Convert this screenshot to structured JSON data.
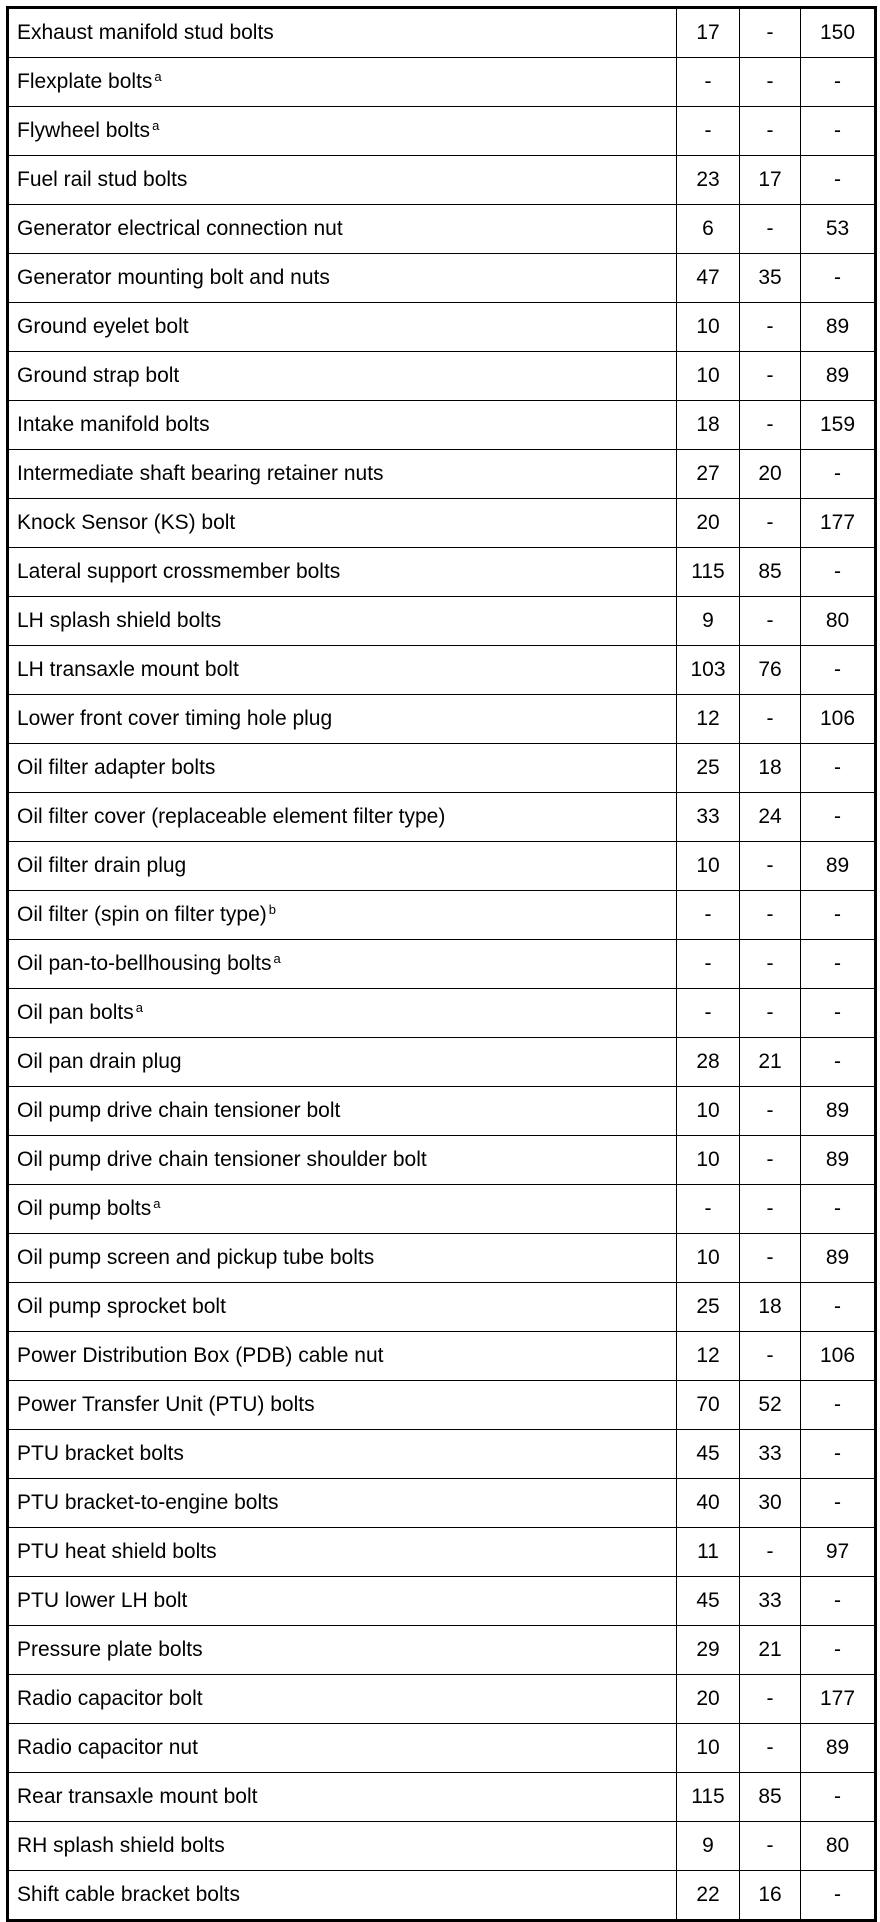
{
  "rows": [
    {
      "name": "Exhaust manifold stud bolts",
      "sup": "",
      "nm": "17",
      "lbft": "-",
      "lbin": "150"
    },
    {
      "name": "Flexplate bolts",
      "sup": "a",
      "nm": "-",
      "lbft": "-",
      "lbin": "-"
    },
    {
      "name": "Flywheel bolts",
      "sup": "a",
      "nm": "-",
      "lbft": "-",
      "lbin": "-"
    },
    {
      "name": "Fuel rail stud bolts",
      "sup": "",
      "nm": "23",
      "lbft": "17",
      "lbin": "-"
    },
    {
      "name": "Generator electrical connection nut",
      "sup": "",
      "nm": "6",
      "lbft": "-",
      "lbin": "53"
    },
    {
      "name": "Generator mounting bolt and nuts",
      "sup": "",
      "nm": "47",
      "lbft": "35",
      "lbin": "-"
    },
    {
      "name": "Ground eyelet bolt",
      "sup": "",
      "nm": "10",
      "lbft": "-",
      "lbin": "89"
    },
    {
      "name": "Ground strap bolt",
      "sup": "",
      "nm": "10",
      "lbft": "-",
      "lbin": "89"
    },
    {
      "name": "Intake manifold bolts",
      "sup": "",
      "nm": "18",
      "lbft": "-",
      "lbin": "159"
    },
    {
      "name": "Intermediate shaft bearing retainer nuts",
      "sup": "",
      "nm": "27",
      "lbft": "20",
      "lbin": "-"
    },
    {
      "name": "Knock Sensor (KS) bolt",
      "sup": "",
      "nm": "20",
      "lbft": "-",
      "lbin": "177"
    },
    {
      "name": "Lateral support crossmember bolts",
      "sup": "",
      "nm": "115",
      "lbft": "85",
      "lbin": "-"
    },
    {
      "name": "LH splash shield bolts",
      "sup": "",
      "nm": "9",
      "lbft": "-",
      "lbin": "80"
    },
    {
      "name": "LH transaxle mount bolt",
      "sup": "",
      "nm": "103",
      "lbft": "76",
      "lbin": "-"
    },
    {
      "name": "Lower front cover timing hole plug",
      "sup": "",
      "nm": "12",
      "lbft": "-",
      "lbin": "106"
    },
    {
      "name": "Oil filter adapter bolts",
      "sup": "",
      "nm": "25",
      "lbft": "18",
      "lbin": "-"
    },
    {
      "name": "Oil filter cover (replaceable element filter type)",
      "sup": "",
      "nm": "33",
      "lbft": "24",
      "lbin": "-"
    },
    {
      "name": "Oil filter drain plug",
      "sup": "",
      "nm": "10",
      "lbft": "-",
      "lbin": "89"
    },
    {
      "name": "Oil filter (spin on filter type)",
      "sup": "b",
      "nm": "-",
      "lbft": "-",
      "lbin": "-"
    },
    {
      "name": "Oil pan-to-bellhousing bolts",
      "sup": "a",
      "nm": "-",
      "lbft": "-",
      "lbin": "-"
    },
    {
      "name": "Oil pan bolts",
      "sup": "a",
      "nm": "-",
      "lbft": "-",
      "lbin": "-"
    },
    {
      "name": "Oil pan drain plug",
      "sup": "",
      "nm": "28",
      "lbft": "21",
      "lbin": "-"
    },
    {
      "name": "Oil pump drive chain tensioner bolt",
      "sup": "",
      "nm": "10",
      "lbft": "-",
      "lbin": "89"
    },
    {
      "name": "Oil pump drive chain tensioner shoulder bolt",
      "sup": "",
      "nm": "10",
      "lbft": "-",
      "lbin": "89"
    },
    {
      "name": "Oil pump bolts",
      "sup": "a",
      "nm": "-",
      "lbft": "-",
      "lbin": "-"
    },
    {
      "name": "Oil pump screen and pickup tube bolts",
      "sup": "",
      "nm": "10",
      "lbft": "-",
      "lbin": "89"
    },
    {
      "name": "Oil pump sprocket bolt",
      "sup": "",
      "nm": "25",
      "lbft": "18",
      "lbin": "-"
    },
    {
      "name": "Power Distribution Box (PDB) cable nut",
      "sup": "",
      "nm": "12",
      "lbft": "-",
      "lbin": "106"
    },
    {
      "name": "Power Transfer Unit (PTU) bolts",
      "sup": "",
      "nm": "70",
      "lbft": "52",
      "lbin": "-"
    },
    {
      "name": "PTU bracket bolts",
      "sup": "",
      "nm": "45",
      "lbft": "33",
      "lbin": "-"
    },
    {
      "name": "PTU bracket-to-engine bolts",
      "sup": "",
      "nm": "40",
      "lbft": "30",
      "lbin": "-"
    },
    {
      "name": "PTU heat shield bolts",
      "sup": "",
      "nm": "11",
      "lbft": "-",
      "lbin": "97"
    },
    {
      "name": "PTU lower LH bolt",
      "sup": "",
      "nm": "45",
      "lbft": "33",
      "lbin": "-"
    },
    {
      "name": "Pressure plate bolts",
      "sup": "",
      "nm": "29",
      "lbft": "21",
      "lbin": "-"
    },
    {
      "name": "Radio capacitor bolt",
      "sup": "",
      "nm": "20",
      "lbft": "-",
      "lbin": "177"
    },
    {
      "name": "Radio capacitor nut",
      "sup": "",
      "nm": "10",
      "lbft": "-",
      "lbin": "89"
    },
    {
      "name": "Rear transaxle mount bolt",
      "sup": "",
      "nm": "115",
      "lbft": "85",
      "lbin": "-"
    },
    {
      "name": "RH splash shield bolts",
      "sup": "",
      "nm": "9",
      "lbft": "-",
      "lbin": "80"
    },
    {
      "name": "Shift cable bracket bolts",
      "sup": "",
      "nm": "22",
      "lbft": "16",
      "lbin": "-"
    }
  ]
}
